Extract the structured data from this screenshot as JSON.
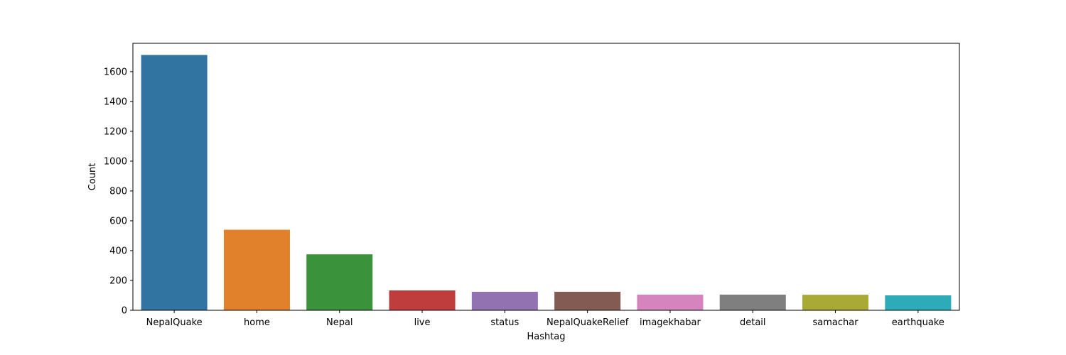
{
  "chart_data": {
    "type": "bar",
    "title": "",
    "xlabel": "Hashtag",
    "ylabel": "Count",
    "categories": [
      "NepalQuake",
      "home",
      "Nepal",
      "live",
      "status",
      "NepalQuakeRelief",
      "imagekhabar",
      "detail",
      "samachar",
      "earthquake"
    ],
    "values": [
      1712,
      540,
      375,
      133,
      124,
      124,
      105,
      105,
      104,
      100
    ],
    "colors": [
      "#3274a1",
      "#e1812c",
      "#3a923a",
      "#c03d3e",
      "#9372b2",
      "#845b53",
      "#d684bd",
      "#7f7f7f",
      "#a9aa35",
      "#2eabb8"
    ],
    "ylim": [
      0,
      1790
    ],
    "yticks": [
      0,
      200,
      400,
      600,
      800,
      1000,
      1200,
      1400,
      1600
    ],
    "grid": false,
    "legend": "none"
  }
}
